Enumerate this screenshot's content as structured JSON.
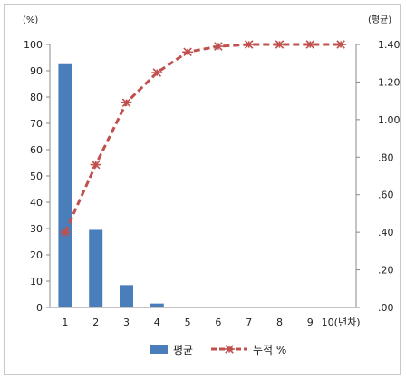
{
  "chart_data": {
    "type": "bar+line",
    "title": "",
    "categories": [
      "1",
      "2",
      "3",
      "4",
      "5",
      "6",
      "7",
      "8",
      "9",
      "10(년차)"
    ],
    "series": [
      {
        "name": "평균",
        "type": "bar",
        "axis": "left",
        "color": "#4a7ebb",
        "values": [
          92.5,
          29.5,
          8.5,
          1.5,
          0.2,
          0.1,
          0.05,
          0.02,
          0.01,
          0.0
        ]
      },
      {
        "name": "누적 %",
        "type": "line",
        "axis": "right",
        "color": "#c0504d",
        "values": [
          0.4,
          0.76,
          1.09,
          1.25,
          1.36,
          1.39,
          1.4,
          1.4,
          1.4,
          1.4
        ]
      }
    ],
    "left_axis": {
      "unit": "(%)",
      "min": 0,
      "max": 100,
      "step": 10,
      "tick_labels": [
        "0",
        "10",
        "20",
        "30",
        "40",
        "50",
        "60",
        "70",
        "80",
        "90",
        "100"
      ]
    },
    "right_axis": {
      "unit": "(평균)",
      "min": 0,
      "max": 1.4,
      "step": 0.2,
      "tick_labels": [
        ".00",
        ".20",
        ".40",
        ".60",
        ".80",
        "1.00",
        "1.20",
        "1.40"
      ]
    },
    "grid": false,
    "legend_position": "bottom"
  }
}
